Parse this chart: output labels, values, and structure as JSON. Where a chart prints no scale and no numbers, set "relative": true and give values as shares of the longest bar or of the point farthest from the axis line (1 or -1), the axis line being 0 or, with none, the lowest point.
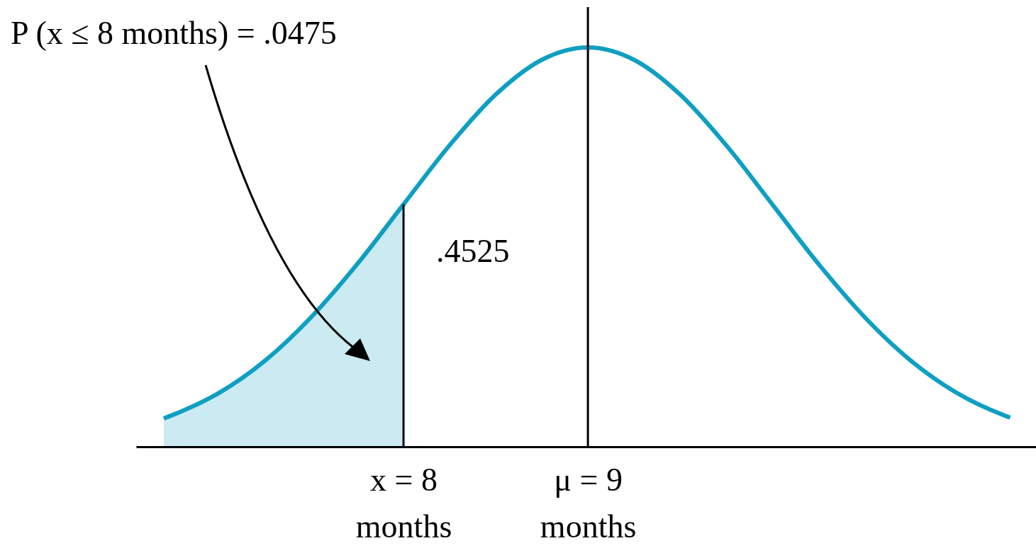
{
  "chart_data": {
    "type": "line",
    "relative": true,
    "xlim": [
      6.55,
      11.43
    ],
    "xticks": [
      {
        "value": 8,
        "label": "x = 8 months"
      },
      {
        "value": 9,
        "label": "μ = 9 months"
      }
    ],
    "series": [
      {
        "type": "area",
        "color": "#cbeaf2",
        "x": [
          6.7,
          6.75,
          7.0,
          7.25,
          7.5,
          7.75,
          8.0
        ],
        "values": [
          0.071,
          0.08,
          0.135,
          0.216,
          0.325,
          0.458,
          0.607
        ]
      },
      {
        "type": "line",
        "color": "#0e9fc2",
        "x": [
          6.7,
          6.75,
          7.0,
          7.25,
          7.5,
          7.75,
          8.0,
          8.25,
          8.5,
          8.75,
          9.0,
          9.25,
          9.5,
          9.75,
          10.0,
          10.25,
          10.5,
          10.75,
          11.0,
          11.25,
          11.29
        ],
        "values": [
          0.071,
          0.08,
          0.135,
          0.216,
          0.325,
          0.458,
          0.607,
          0.755,
          0.882,
          0.969,
          1,
          0.969,
          0.882,
          0.755,
          0.607,
          0.458,
          0.325,
          0.216,
          0.135,
          0.08,
          0.073
        ]
      }
    ],
    "ref_lines": [
      {
        "axis": "x",
        "value": 8,
        "color": "#000000"
      },
      {
        "axis": "x",
        "value": 9,
        "color": "#000000"
      }
    ],
    "annotations": [
      "P (x ≤  8 months) = .0475",
      ".4525"
    ]
  }
}
